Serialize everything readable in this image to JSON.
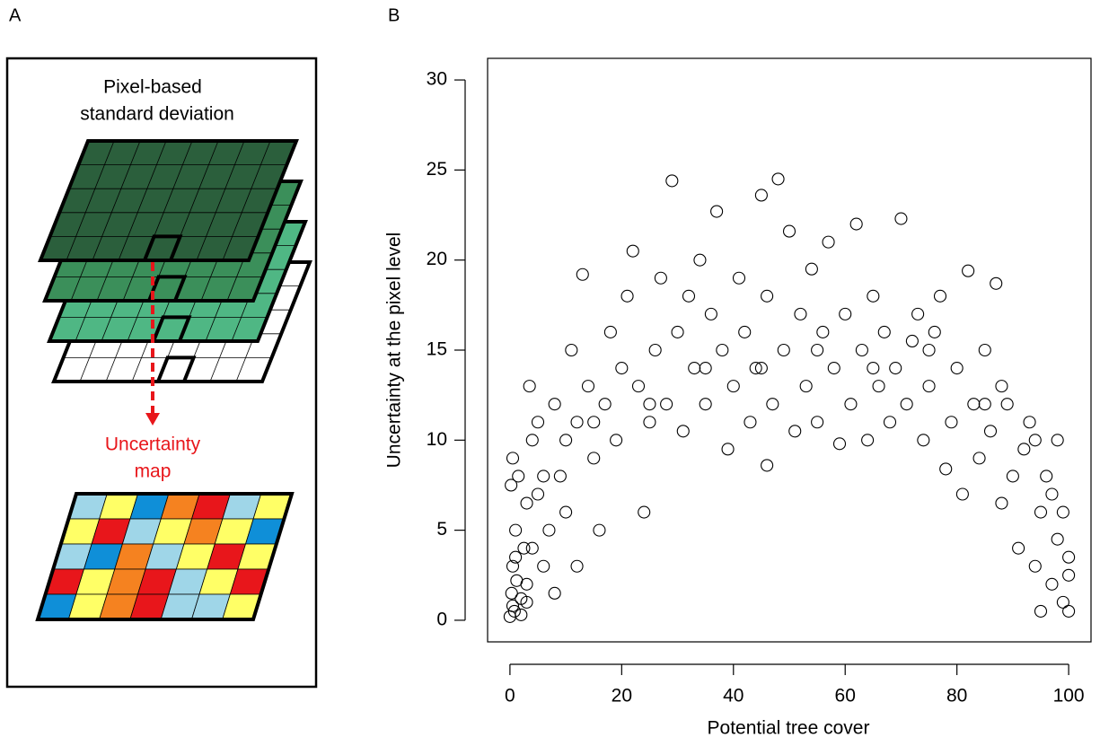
{
  "panel_labels": [
    "A",
    "B"
  ],
  "diagram": {
    "title_lines": [
      "Pixel-based",
      "standard deviation"
    ],
    "output_lines": [
      "Uncertainty",
      "map"
    ]
  },
  "chart_data": {
    "type": "scatter",
    "x_label": "Potential tree cover",
    "y_label": "Uncertainty at the pixel level",
    "color": "#000000",
    "xlim": [
      -4,
      104
    ],
    "ylim": [
      -1.2,
      31.2
    ],
    "xticks": [
      0,
      20,
      40,
      60,
      80,
      100
    ],
    "yticks": [
      0,
      5,
      10,
      15,
      20,
      25,
      30
    ],
    "x": [
      0,
      0.3,
      0.5,
      0.8,
      1,
      1.2,
      0.2,
      0.5,
      1.5,
      2,
      2.5,
      3,
      3,
      4,
      3.5,
      5,
      6,
      5,
      7,
      8,
      8,
      9,
      10,
      11,
      12,
      13,
      12,
      14,
      15,
      16,
      17,
      18,
      19,
      20,
      21,
      22,
      23,
      24,
      25,
      26,
      27,
      28,
      29,
      30,
      31,
      32,
      33,
      34,
      35,
      36,
      37,
      38,
      39,
      40,
      41,
      42,
      43,
      44,
      45,
      46,
      46,
      47,
      48,
      49,
      50,
      51,
      52,
      53,
      54,
      55,
      56,
      57,
      58,
      59,
      60,
      61,
      62,
      63,
      64,
      65,
      66,
      67,
      68,
      69,
      70,
      71,
      72,
      73,
      74,
      75,
      76,
      77,
      78,
      79,
      80,
      81,
      82,
      83,
      84,
      85,
      86,
      87,
      88,
      89,
      90,
      91,
      92,
      93,
      94,
      95,
      95,
      96,
      97,
      98,
      98,
      99,
      99,
      100,
      100,
      100,
      97,
      94,
      88,
      85,
      75,
      65,
      55,
      45,
      35,
      25,
      15,
      10,
      6,
      4,
      3,
      1,
      0.5,
      2
    ],
    "y": [
      0.2,
      1.5,
      3,
      0.5,
      5,
      2.2,
      7.5,
      9,
      8,
      0.3,
      4,
      1,
      6.5,
      10,
      13,
      7,
      3,
      11,
      5,
      12,
      1.5,
      8,
      10,
      15,
      3,
      19.2,
      11,
      13,
      9,
      5,
      12,
      16,
      10,
      14,
      18,
      20.5,
      13,
      6,
      11,
      15,
      19,
      12,
      24.4,
      16,
      10.5,
      18,
      14,
      20,
      12,
      17,
      22.7,
      15,
      9.5,
      13,
      19,
      16,
      11,
      14,
      23.6,
      8.6,
      18,
      12,
      24.5,
      15,
      21.6,
      10.5,
      17,
      13,
      19.5,
      11,
      16,
      21,
      14,
      9.8,
      17,
      12,
      22,
      15,
      10,
      18,
      13,
      16,
      11,
      14,
      22.3,
      12,
      15.5,
      17,
      10,
      13,
      16,
      18,
      8.4,
      11,
      14,
      7,
      19.4,
      12,
      9,
      15,
      10.5,
      18.7,
      6.5,
      12,
      8,
      4,
      9.5,
      11,
      3,
      6,
      0.5,
      8,
      2,
      4.5,
      10,
      1,
      6,
      0.5,
      2.5,
      3.5,
      7,
      10,
      13,
      12,
      15,
      14,
      15,
      14,
      14,
      12,
      11,
      6,
      8,
      4,
      2,
      3.5,
      0.8,
      1.2
    ]
  }
}
